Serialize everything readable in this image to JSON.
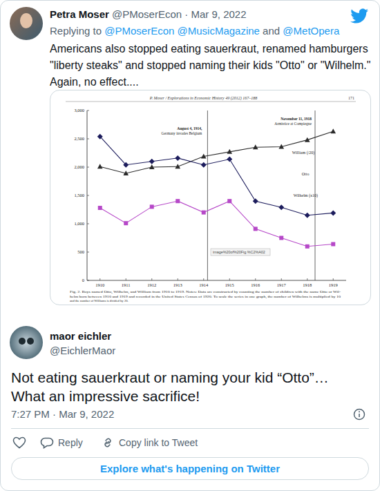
{
  "tweet": {
    "name": "Petra Moser",
    "handle": "@PMoserEcon · Mar 9, 2022",
    "replying_to": "Replying to",
    "mentions": [
      "@PMoserEcon",
      "@MusicMagazine",
      "@MetOpera"
    ],
    "and": "and",
    "text": [
      "Americans also stopped eating sauerkraut, renamed hamburgers",
      "\"liberty steaks\" and stopped naming their kids \"Otto\" or \"Wilhelm.\"",
      "Again, no effect...."
    ]
  },
  "chart_data": {
    "type": "line",
    "header": "P. Moser / Explorations in Economic History 49 (2012) 167–188",
    "page_number": "171",
    "caption": [
      "Fig. 2. Boys named Otto, Wilhelm, and William from 1910 to 1919. Notes: Data are constructed by counting the number of children with the name Otto or Wil-",
      "helm born between 1910 and 1919 and recorded in the United States Census of 1920. To scale the series in one graph, the number of Wilhelms is multiplied by 10",
      "and the number of Williams is divided by 20."
    ],
    "tooltip": "image%20of%20Fig.%C2%A02",
    "x": [
      1910,
      1911,
      1912,
      1913,
      1914,
      1915,
      1916,
      1917,
      1918,
      1919
    ],
    "xlim": [
      1909.5,
      1919.5
    ],
    "xticks": [
      1910,
      1911,
      1912,
      1913,
      1914,
      1915,
      1916,
      1917,
      1918,
      1919
    ],
    "ylim": [
      0,
      3000
    ],
    "yticks": [
      0,
      500,
      {
        "value": 1000,
        "label": "1,000"
      },
      {
        "value": 1500,
        "label": "1,500"
      },
      {
        "value": 2000,
        "label": "2,000"
      },
      {
        "value": 2500,
        "label": "2,500"
      },
      {
        "value": 3000,
        "label": "3,000"
      }
    ],
    "grid": false,
    "series": [
      {
        "name": "William (/20)",
        "color": "#2b2b2b",
        "marker": "triangle",
        "values": [
          2010,
          1890,
          2000,
          2010,
          2190,
          2270,
          2350,
          2360,
          2480,
          2630
        ]
      },
      {
        "name": "Otto",
        "color": "#1c1c5c",
        "marker": "diamond",
        "values": [
          2540,
          2040,
          2100,
          2160,
          2040,
          2140,
          1400,
          1290,
          1150,
          1190
        ]
      },
      {
        "name": "Wilhelm (x10)",
        "color": "#b648c8",
        "marker": "square",
        "values": [
          1280,
          1010,
          1300,
          1400,
          1200,
          1400,
          910,
          750,
          600,
          640
        ]
      }
    ],
    "annotations": [
      {
        "x": 1914.15,
        "text": [
          "August 4, 1914,",
          "Germany invades Belgium"
        ]
      },
      {
        "x": 1918.3,
        "text": [
          "November 11, 1918",
          "Armistice at Compiegne"
        ]
      }
    ]
  },
  "reply": {
    "name": "maor eichler",
    "handle": "@EichlerMaor",
    "text": [
      "Not eating sauerkraut or naming your kid “Otto”…",
      "What an impressive sacrifice!"
    ],
    "time": "7:27 PM · Mar 9, 2022",
    "actions": [
      "Reply",
      "Copy link to Tweet"
    ],
    "button": "Explore what's happening on Twitter"
  }
}
